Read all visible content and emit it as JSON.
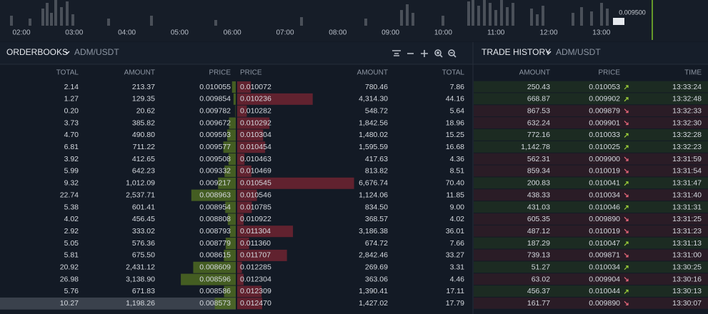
{
  "chart": {
    "times": [
      "02:00",
      "03:00",
      "04:00",
      "05:00",
      "06:00",
      "07:00",
      "08:00",
      "09:00",
      "10:00",
      "11:00",
      "12:00",
      "13:00"
    ],
    "price_label": "0.009500"
  },
  "orderbook": {
    "title": "ORDERBOOKS",
    "pair": "ADM/USDT",
    "bid_headers": [
      "TOTAL",
      "AMOUNT",
      "PRICE"
    ],
    "ask_headers": [
      "PRICE",
      "AMOUNT",
      "TOTAL"
    ],
    "bids": [
      [
        "2.14",
        "213.37",
        "0.010055"
      ],
      [
        "1.27",
        "129.35",
        "0.009854"
      ],
      [
        "0.20",
        "20.62",
        "0.009782"
      ],
      [
        "3.73",
        "385.82",
        "0.009672"
      ],
      [
        "4.70",
        "490.80",
        "0.009593"
      ],
      [
        "6.81",
        "711.22",
        "0.009577"
      ],
      [
        "3.92",
        "412.65",
        "0.009508"
      ],
      [
        "5.99",
        "642.23",
        "0.009332"
      ],
      [
        "9.32",
        "1,012.09",
        "0.009217"
      ],
      [
        "22.74",
        "2,537.71",
        "0.008963"
      ],
      [
        "5.38",
        "601.41",
        "0.008954"
      ],
      [
        "4.02",
        "456.45",
        "0.008808"
      ],
      [
        "2.92",
        "333.02",
        "0.008793"
      ],
      [
        "5.05",
        "576.36",
        "0.008779"
      ],
      [
        "5.81",
        "675.50",
        "0.008615"
      ],
      [
        "20.92",
        "2,431.12",
        "0.008609"
      ],
      [
        "26.98",
        "3,138.90",
        "0.008596"
      ],
      [
        "5.76",
        "671.83",
        "0.008586"
      ],
      [
        "10.27",
        "1,198.26",
        "0.008573"
      ]
    ],
    "asks": [
      [
        "0.010072",
        "780.46",
        "7.86"
      ],
      [
        "0.010236",
        "4,314.30",
        "44.16"
      ],
      [
        "0.010282",
        "548.72",
        "5.64"
      ],
      [
        "0.010292",
        "1,842.56",
        "18.96"
      ],
      [
        "0.010304",
        "1,480.02",
        "15.25"
      ],
      [
        "0.010454",
        "1,595.59",
        "16.68"
      ],
      [
        "0.010463",
        "417.63",
        "4.36"
      ],
      [
        "0.010469",
        "813.82",
        "8.51"
      ],
      [
        "0.010545",
        "6,676.74",
        "70.40"
      ],
      [
        "0.010546",
        "1,124.06",
        "11.85"
      ],
      [
        "0.010785",
        "834.50",
        "9.00"
      ],
      [
        "0.010922",
        "368.57",
        "4.02"
      ],
      [
        "0.011304",
        "3,186.38",
        "36.01"
      ],
      [
        "0.011360",
        "674.72",
        "7.66"
      ],
      [
        "0.011707",
        "2,842.46",
        "33.27"
      ],
      [
        "0.012285",
        "269.69",
        "3.31"
      ],
      [
        "0.012304",
        "363.06",
        "4.46"
      ],
      [
        "0.012309",
        "1,390.41",
        "17.11"
      ],
      [
        "0.012470",
        "1,427.02",
        "17.79"
      ]
    ]
  },
  "trade_history": {
    "title": "TRADE HISTORY",
    "pair": "ADM/USDT",
    "headers": [
      "AMOUNT",
      "PRICE",
      "TIME"
    ],
    "rows": [
      {
        "amount": "250.43",
        "price": "0.010053",
        "time": "13:33:24",
        "side": "buy"
      },
      {
        "amount": "668.87",
        "price": "0.009902",
        "time": "13:32:48",
        "side": "buy"
      },
      {
        "amount": "867.53",
        "price": "0.009879",
        "time": "13:32:33",
        "side": "sell"
      },
      {
        "amount": "632.24",
        "price": "0.009901",
        "time": "13:32:30",
        "side": "sell"
      },
      {
        "amount": "772.16",
        "price": "0.010033",
        "time": "13:32:28",
        "side": "buy"
      },
      {
        "amount": "1,142.78",
        "price": "0.010025",
        "time": "13:32:23",
        "side": "buy"
      },
      {
        "amount": "562.31",
        "price": "0.009900",
        "time": "13:31:59",
        "side": "sell"
      },
      {
        "amount": "859.34",
        "price": "0.010019",
        "time": "13:31:54",
        "side": "sell"
      },
      {
        "amount": "200.83",
        "price": "0.010041",
        "time": "13:31:47",
        "side": "buy"
      },
      {
        "amount": "438.33",
        "price": "0.010034",
        "time": "13:31:40",
        "side": "sell"
      },
      {
        "amount": "431.03",
        "price": "0.010046",
        "time": "13:31:31",
        "side": "buy"
      },
      {
        "amount": "605.35",
        "price": "0.009890",
        "time": "13:31:25",
        "side": "sell"
      },
      {
        "amount": "487.12",
        "price": "0.010019",
        "time": "13:31:23",
        "side": "sell"
      },
      {
        "amount": "187.29",
        "price": "0.010047",
        "time": "13:31:13",
        "side": "buy"
      },
      {
        "amount": "739.13",
        "price": "0.009871",
        "time": "13:31:00",
        "side": "sell"
      },
      {
        "amount": "51.27",
        "price": "0.010034",
        "time": "13:30:25",
        "side": "buy"
      },
      {
        "amount": "63.02",
        "price": "0.009904",
        "time": "13:30:16",
        "side": "sell"
      },
      {
        "amount": "456.37",
        "price": "0.010044",
        "time": "13:30:13",
        "side": "buy"
      },
      {
        "amount": "161.77",
        "price": "0.009890",
        "time": "13:30:07",
        "side": "sell"
      }
    ]
  }
}
